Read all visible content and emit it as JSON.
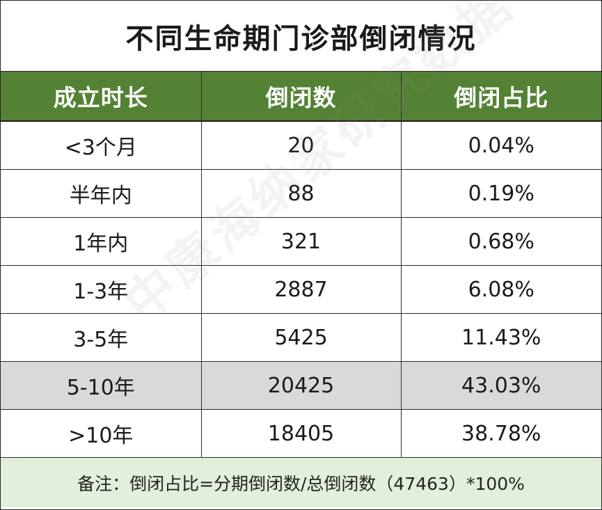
{
  "title": "不同生命期门诊部倒闭情况",
  "headers": [
    "成立时长",
    "倒闭数",
    "倒闭占比"
  ],
  "rows": [
    {
      "duration": "<3个月",
      "count": "20",
      "ratio": "0.04%"
    },
    {
      "duration": "半年内",
      "count": "88",
      "ratio": "0.19%"
    },
    {
      "duration": "1年内",
      "count": "321",
      "ratio": "0.68%"
    },
    {
      "duration": "1-3年",
      "count": "2887",
      "ratio": "6.08%"
    },
    {
      "duration": "3-5年",
      "count": "5425",
      "ratio": "11.43%"
    },
    {
      "duration": "5-10年",
      "count": "20425",
      "ratio": "43.03%"
    },
    {
      "duration": ">10年",
      "count": "18405",
      "ratio": "38.78%"
    }
  ],
  "highlighted_row": "5-10年",
  "note": "备注：倒闭占比=分期倒闭数/总倒闭数（47463）*100%",
  "watermark": "中康海纳家研究数据",
  "colors": {
    "header_bg": "#548235",
    "header_text": "#ffffff",
    "highlight_row_bg": "#d9d9d9",
    "note_bg": "#e2efda"
  }
}
